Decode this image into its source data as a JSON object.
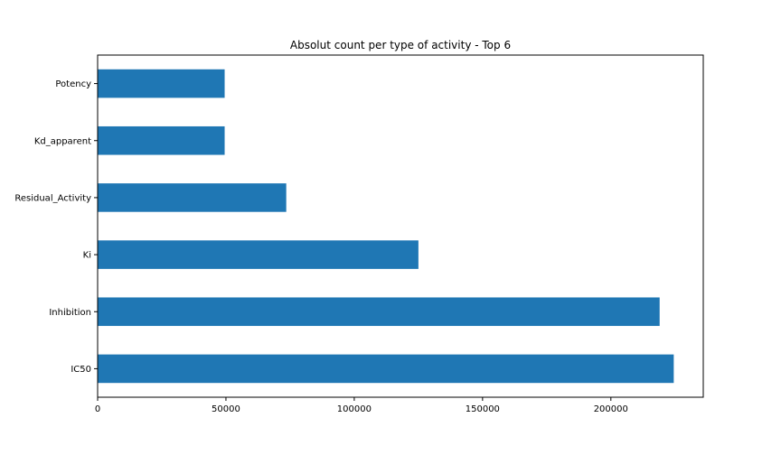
{
  "chart_data": {
    "type": "bar",
    "orientation": "horizontal",
    "title": "Absolut count per type of activity - Top 6",
    "xlabel": "",
    "ylabel": "",
    "categories": [
      "IC50",
      "Inhibition",
      "Ki",
      "Residual_Activity",
      "Kd_apparent",
      "Potency"
    ],
    "values": [
      224500,
      219000,
      125000,
      73500,
      49500,
      49500
    ],
    "xlim": [
      0,
      236000
    ],
    "xticks": [
      0,
      50000,
      100000,
      150000,
      200000
    ],
    "xtick_labels": [
      "0",
      "50000",
      "100000",
      "150000",
      "200000"
    ],
    "bar_color": "#1f77b4",
    "grid": false,
    "legend": "none"
  }
}
